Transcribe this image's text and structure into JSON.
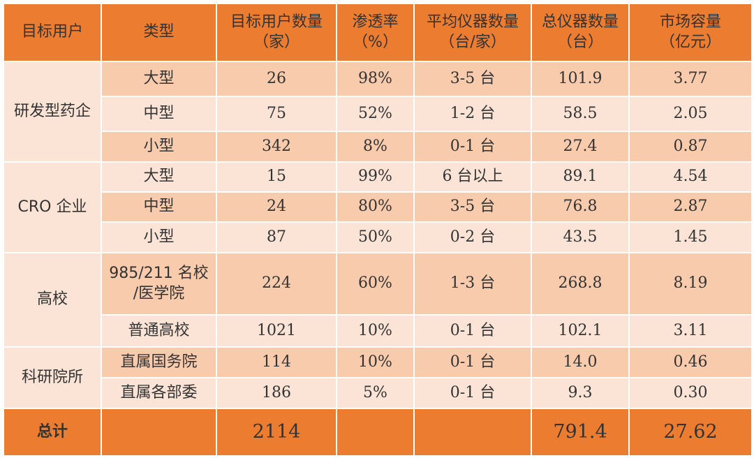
{
  "headers": [
    {
      "line1": "目标用户",
      "line2": ""
    },
    {
      "line1": "类型",
      "line2": ""
    },
    {
      "line1": "目标用户数量",
      "line2": "（家）"
    },
    {
      "line1": "渗透率",
      "line2": "（%）"
    },
    {
      "line1": "平均仪器数量",
      "line2": "（台/家）"
    },
    {
      "line1": "总仪器数量",
      "line2": "（台）"
    },
    {
      "line1": "市场容量",
      "line2": "（亿元）"
    }
  ],
  "groups": {
    "pharma": "研发型药企",
    "cro": "CRO 企业",
    "university": "高校",
    "institute": "科研院所"
  },
  "rows": [
    {
      "type": "大型",
      "users": "26",
      "penetration": "98%",
      "avg": "3-5 台",
      "total": "101.9",
      "market": "3.77"
    },
    {
      "type": "中型",
      "users": "75",
      "penetration": "52%",
      "avg": "1-2 台",
      "total": "58.5",
      "market": "2.05"
    },
    {
      "type": "小型",
      "users": "342",
      "penetration": "8%",
      "avg": "0-1 台",
      "total": "27.4",
      "market": "0.87"
    },
    {
      "type": "大型",
      "users": "15",
      "penetration": "99%",
      "avg": "6 台以上",
      "total": "89.1",
      "market": "4.54"
    },
    {
      "type": "中型",
      "users": "24",
      "penetration": "80%",
      "avg": "3-5 台",
      "total": "76.8",
      "market": "2.87"
    },
    {
      "type": "小型",
      "users": "87",
      "penetration": "50%",
      "avg": "0-2 台",
      "total": "43.5",
      "market": "1.45"
    },
    {
      "type": "985/211 名校/医学院",
      "type_line1": "985/211 名校",
      "type_line2": "/医学院",
      "users": "224",
      "penetration": "60%",
      "avg": "1-3 台",
      "total": "268.8",
      "market": "8.19"
    },
    {
      "type": "普通高校",
      "users": "1021",
      "penetration": "10%",
      "avg": "0-1 台",
      "total": "102.1",
      "market": "3.11"
    },
    {
      "type": "直属国务院",
      "users": "114",
      "penetration": "10%",
      "avg": "0-1 台",
      "total": "14.0",
      "market": "0.46"
    },
    {
      "type": "直属各部委",
      "users": "186",
      "penetration": "5%",
      "avg": "0-1 台",
      "total": "9.3",
      "market": "0.30"
    }
  ],
  "total": {
    "label": "总计",
    "users": "2114",
    "total": "791.4",
    "market": "27.62"
  },
  "colors": {
    "header": "#ec7c30",
    "dark": "#f8cbad",
    "light": "#fbe4d6"
  }
}
